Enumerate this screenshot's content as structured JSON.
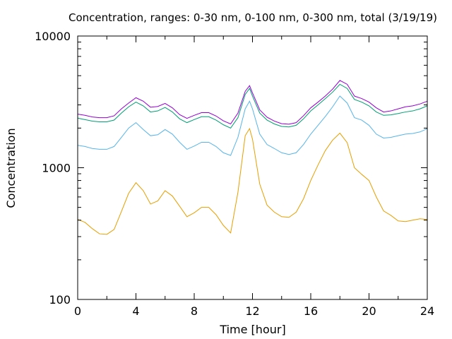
{
  "chart_data": {
    "type": "line",
    "title": "Concentration, ranges: 0-30 nm, 0-100 nm, 0-300 nm, total (3/19/19)",
    "xlabel": "Time [hour]",
    "ylabel": "Concentration",
    "xlim": [
      0,
      24
    ],
    "ylim": [
      100,
      10000
    ],
    "yscale": "log",
    "grid": false,
    "legend": "none",
    "x_ticks": [
      0,
      4,
      8,
      12,
      16,
      20,
      24
    ],
    "x_tick_labels": [
      "0",
      "4",
      "8",
      "12",
      "16",
      "20",
      "24"
    ],
    "y_ticks": [
      100,
      1000,
      10000
    ],
    "y_tick_labels": [
      "100",
      "1000",
      "10000"
    ],
    "series": [
      {
        "color": "#e69f00",
        "x": [
          0,
          0.5,
          1,
          1.5,
          2,
          2.5,
          3,
          3.5,
          4,
          4.5,
          5,
          5.5,
          6,
          6.5,
          7,
          7.5,
          8,
          8.5,
          9,
          9.5,
          10,
          10.5,
          11,
          11.5,
          11.8,
          12,
          12.5,
          13,
          13.5,
          14,
          14.5,
          15,
          15.5,
          16,
          16.5,
          17,
          17.5,
          18,
          18.5,
          19,
          19.5,
          20,
          20.5,
          21,
          21.5,
          22,
          22.5,
          23,
          23.5,
          24
        ],
        "y": [
          405,
          385,
          345,
          315,
          312,
          340,
          465,
          640,
          770,
          670,
          530,
          560,
          670,
          610,
          510,
          425,
          455,
          500,
          500,
          440,
          365,
          320,
          650,
          1750,
          1980,
          1650,
          750,
          520,
          460,
          425,
          420,
          460,
          580,
          800,
          1050,
          1350,
          1620,
          1830,
          1550,
          1000,
          890,
          800,
          600,
          470,
          435,
          395,
          390,
          400,
          410,
          405
        ]
      },
      {
        "color": "#56b4e9",
        "x": [
          0,
          0.5,
          1,
          1.5,
          2,
          2.5,
          3,
          3.5,
          4,
          4.5,
          5,
          5.5,
          6,
          6.5,
          7,
          7.5,
          8,
          8.5,
          9,
          9.5,
          10,
          10.5,
          11,
          11.5,
          11.8,
          12,
          12.5,
          13,
          13.5,
          14,
          14.5,
          15,
          15.5,
          16,
          16.5,
          17,
          17.5,
          18,
          18.5,
          19,
          19.5,
          20,
          20.5,
          21,
          21.5,
          22,
          22.5,
          23,
          23.5,
          24
        ],
        "y": [
          1480,
          1450,
          1400,
          1380,
          1380,
          1450,
          1700,
          2000,
          2200,
          1950,
          1750,
          1780,
          1950,
          1800,
          1560,
          1380,
          1460,
          1560,
          1560,
          1450,
          1300,
          1240,
          1700,
          2800,
          3200,
          2800,
          1800,
          1500,
          1400,
          1300,
          1260,
          1300,
          1500,
          1800,
          2100,
          2450,
          2900,
          3500,
          3100,
          2400,
          2300,
          2100,
          1800,
          1680,
          1700,
          1750,
          1800,
          1820,
          1870,
          1980
        ]
      },
      {
        "color": "#009e73",
        "x": [
          0,
          0.5,
          1,
          1.5,
          2,
          2.5,
          3,
          3.5,
          4,
          4.5,
          5,
          5.5,
          6,
          6.5,
          7,
          7.5,
          8,
          8.5,
          9,
          9.5,
          10,
          10.5,
          11,
          11.5,
          11.8,
          12,
          12.5,
          13,
          13.5,
          14,
          14.5,
          15,
          15.5,
          16,
          16.5,
          17,
          17.5,
          18,
          18.5,
          19,
          19.5,
          20,
          20.5,
          21,
          21.5,
          22,
          22.5,
          23,
          23.5,
          24
        ],
        "y": [
          2380,
          2320,
          2260,
          2230,
          2230,
          2300,
          2600,
          2900,
          3150,
          2950,
          2650,
          2700,
          2870,
          2650,
          2350,
          2200,
          2320,
          2440,
          2440,
          2300,
          2120,
          2000,
          2400,
          3600,
          4000,
          3500,
          2600,
          2300,
          2150,
          2060,
          2040,
          2100,
          2350,
          2700,
          3000,
          3350,
          3750,
          4300,
          4000,
          3300,
          3150,
          2950,
          2650,
          2500,
          2520,
          2580,
          2650,
          2700,
          2800,
          2950
        ]
      },
      {
        "color": "#9400d3",
        "x": [
          0,
          0.5,
          1,
          1.5,
          2,
          2.5,
          3,
          3.5,
          4,
          4.5,
          5,
          5.5,
          6,
          6.5,
          7,
          7.5,
          8,
          8.5,
          9,
          9.5,
          10,
          10.5,
          11,
          11.5,
          11.8,
          12,
          12.5,
          13,
          13.5,
          14,
          14.5,
          15,
          15.5,
          16,
          16.5,
          17,
          17.5,
          18,
          18.5,
          19,
          19.5,
          20,
          20.5,
          21,
          21.5,
          22,
          22.5,
          23,
          23.5,
          24
        ],
        "y": [
          2550,
          2500,
          2430,
          2400,
          2400,
          2480,
          2800,
          3100,
          3400,
          3200,
          2880,
          2920,
          3080,
          2850,
          2530,
          2370,
          2500,
          2620,
          2620,
          2470,
          2270,
          2150,
          2600,
          3800,
          4200,
          3700,
          2750,
          2420,
          2260,
          2160,
          2140,
          2200,
          2480,
          2850,
          3150,
          3500,
          3950,
          4600,
          4300,
          3500,
          3350,
          3150,
          2850,
          2650,
          2700,
          2800,
          2900,
          2950,
          3050,
          3200
        ]
      }
    ]
  }
}
